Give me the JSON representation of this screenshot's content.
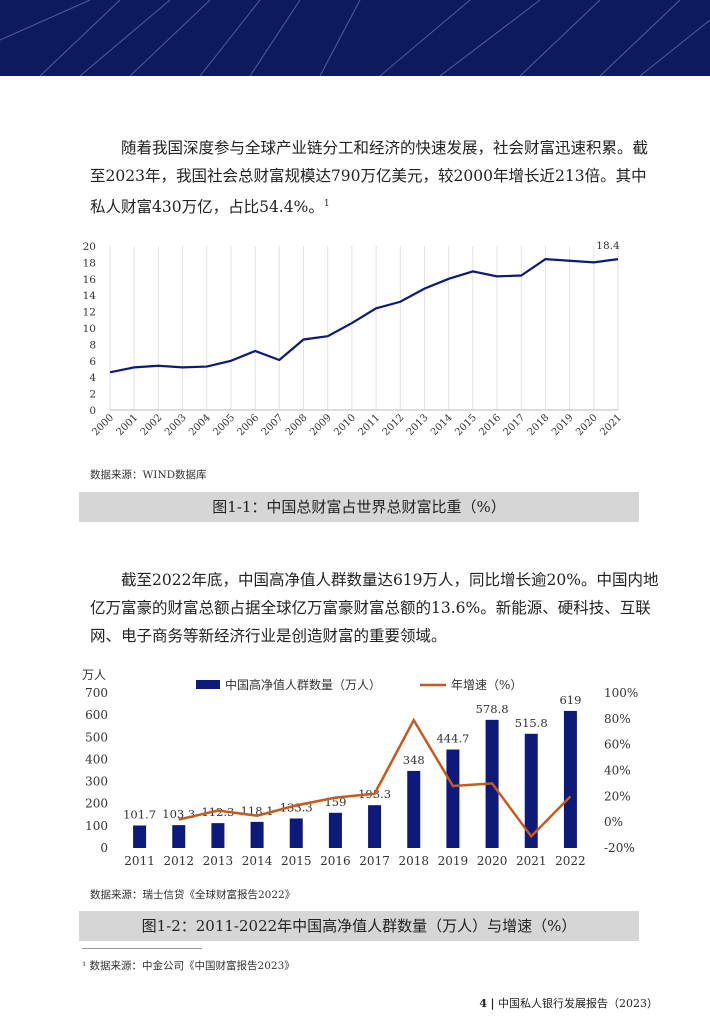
{
  "paragraph1": "随着我国深度参与全球产业链分工和经济的快速发展，社会财富迅速积累。截至2023年，我国社会总财富规模达790万亿美元，较2000年增长近213倍。其中私人财富430万亿，占比54.4%。",
  "paragraph1_footnote_mark": "1",
  "paragraph2": "截至2022年底，中国高净值人群数量达619万人，同比增长逾20%。中国内地亿万富豪的财富总额占据全球亿万富豪财富总额的13.6%。新能源、硬科技、互联网、电子商务等新经济行业是创造财富的重要领域。",
  "source1": "数据来源：WIND数据库",
  "caption1": "图1-1：中国总财富占世界总财富比重（%）",
  "source2": "数据来源：瑞士信贷《全球财富报告2022》",
  "caption2": "图1-2：2011-2022年中国高净值人群数量（万人）与增速（%）",
  "footnote": "¹ 数据来源：中金公司《中国财富报告2023》",
  "footer": {
    "page": "4",
    "separator": "|",
    "title": "中国私人银行发展报告（2023）"
  },
  "colors": {
    "banner": "#0d1a5e",
    "navy": "#0d1a7a",
    "orange": "#c55a1c",
    "caption_bg": "#d6d6d6"
  },
  "chart_data": [
    {
      "type": "line",
      "x": [
        "2000",
        "2001",
        "2002",
        "2003",
        "2004",
        "2005",
        "2006",
        "2007",
        "2008",
        "2009",
        "2010",
        "2011",
        "2012",
        "2013",
        "2014",
        "2015",
        "2016",
        "2017",
        "2018",
        "2019",
        "2020",
        "2021"
      ],
      "series": [
        {
          "values": [
            4.6,
            5.2,
            5.4,
            5.2,
            5.3,
            6.0,
            7.2,
            6.1,
            8.6,
            9.0,
            10.6,
            12.4,
            13.2,
            14.8,
            16.0,
            16.9,
            16.3,
            16.4,
            18.4,
            18.2,
            18.0,
            18.4
          ]
        }
      ],
      "last_label": "18.4",
      "yticks": [
        "0",
        "2",
        "4",
        "6",
        "8",
        "10",
        "12",
        "14",
        "16",
        "18",
        "20"
      ],
      "ylim": [
        0,
        20
      ]
    },
    {
      "type": "bar",
      "categories": [
        "2011",
        "2012",
        "2013",
        "2014",
        "2015",
        "2016",
        "2017",
        "2018",
        "2019",
        "2020",
        "2021",
        "2022"
      ],
      "y_unit": "万人",
      "yticks_left": [
        "0",
        "100",
        "200",
        "300",
        "400",
        "500",
        "600",
        "700"
      ],
      "yticks_right": [
        "-20%",
        "0%",
        "20%",
        "40%",
        "60%",
        "80%",
        "100%"
      ],
      "ylim_left": [
        0,
        700
      ],
      "ylim_right": [
        -20,
        100
      ],
      "series": [
        {
          "name": "中国高净值人群数量（万人）",
          "type": "bar",
          "values": [
            101.7,
            103.3,
            112.3,
            118.1,
            133.3,
            159,
            193.3,
            348,
            444.7,
            578.8,
            515.8,
            619
          ],
          "labels": [
            "101.7",
            "103.3",
            "112.3",
            "118.1",
            "133.3",
            "159",
            "193.3",
            "348",
            "444.7",
            "578.8",
            "515.8",
            "619"
          ]
        },
        {
          "name": "年增速（%）",
          "type": "line",
          "values": [
            null,
            2,
            9,
            5,
            13,
            19,
            22,
            79,
            28,
            30,
            -11,
            20
          ]
        }
      ]
    }
  ]
}
